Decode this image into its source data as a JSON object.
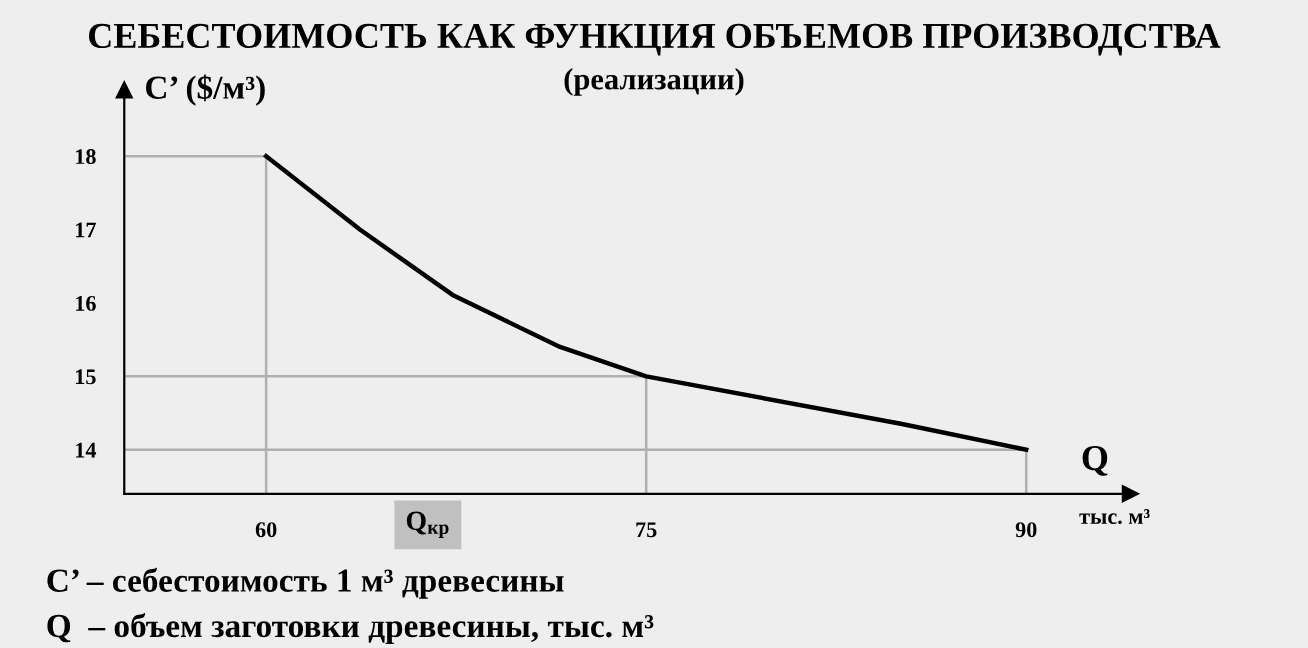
{
  "chart_data": {
    "type": "line",
    "title": "СЕБЕСТОИМОСТЬ КАК ФУНКЦИЯ ОБЪЕМОВ ПРОИЗВОДСТВА",
    "subtitle": "(реализации)",
    "xlabel": "Q",
    "ylabel": "C’ ($/м³)",
    "x": [
      60,
      63.7,
      67.4,
      71.6,
      75,
      85.1,
      90
    ],
    "series": [
      {
        "color": "#000000",
        "values": [
          18,
          17.0,
          16.1,
          15.4,
          15,
          14.35,
          14
        ]
      }
    ],
    "xlim": [
      54.4,
      94.1
    ],
    "ylim": [
      13.4,
      18.9
    ],
    "xticks": [
      60,
      75,
      90
    ],
    "yticks": [
      14,
      15,
      16,
      17,
      18
    ],
    "ref_lines": [
      {
        "axis": "y",
        "value": 18,
        "color": "#b0b0b0"
      },
      {
        "axis": "y",
        "value": 15,
        "color": "#b0b0b0"
      },
      {
        "axis": "y",
        "value": 14,
        "color": "#b0b0b0"
      },
      {
        "axis": "x",
        "value": 60,
        "color": "#b0b0b0"
      },
      {
        "axis": "x",
        "value": 75,
        "color": "#b0b0b0"
      },
      {
        "axis": "x",
        "value": 90,
        "color": "#b0b0b0"
      }
    ],
    "annotations": [
      "Q$_{кр}$",
      "тыс. м³",
      "C’ – себестоимость 1 м³ древесины",
      "Q  – объем заготовки древесины, тыс. м³"
    ],
    "grid": false,
    "marker": "none",
    "line_style": "solid"
  }
}
